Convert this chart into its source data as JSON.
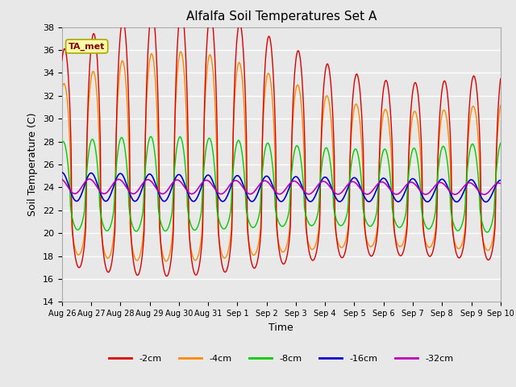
{
  "title": "Alfalfa Soil Temperatures Set A",
  "xlabel": "Time",
  "ylabel": "Soil Temperature (C)",
  "ylim": [
    14,
    38
  ],
  "yticks": [
    14,
    16,
    18,
    20,
    22,
    24,
    26,
    28,
    30,
    32,
    34,
    36,
    38
  ],
  "plot_bg_color": "#e8e8e8",
  "series_colors": {
    "-2cm": "#dd0000",
    "-4cm": "#ff8800",
    "-8cm": "#00cc00",
    "-16cm": "#0000cc",
    "-32cm": "#bb00bb"
  },
  "ta_met_box_color": "#ffffaa",
  "ta_met_text_color": "#880000",
  "xtick_labels": [
    "Aug 26",
    "Aug 27",
    "Aug 28",
    "Aug 29",
    "Aug 30",
    "Aug 31",
    "Sep 1",
    "Sep 2",
    "Sep 3",
    "Sep 4",
    "Sep 5",
    "Sep 6",
    "Sep 7",
    "Sep 8",
    "Sep 9",
    "Sep 10"
  ]
}
